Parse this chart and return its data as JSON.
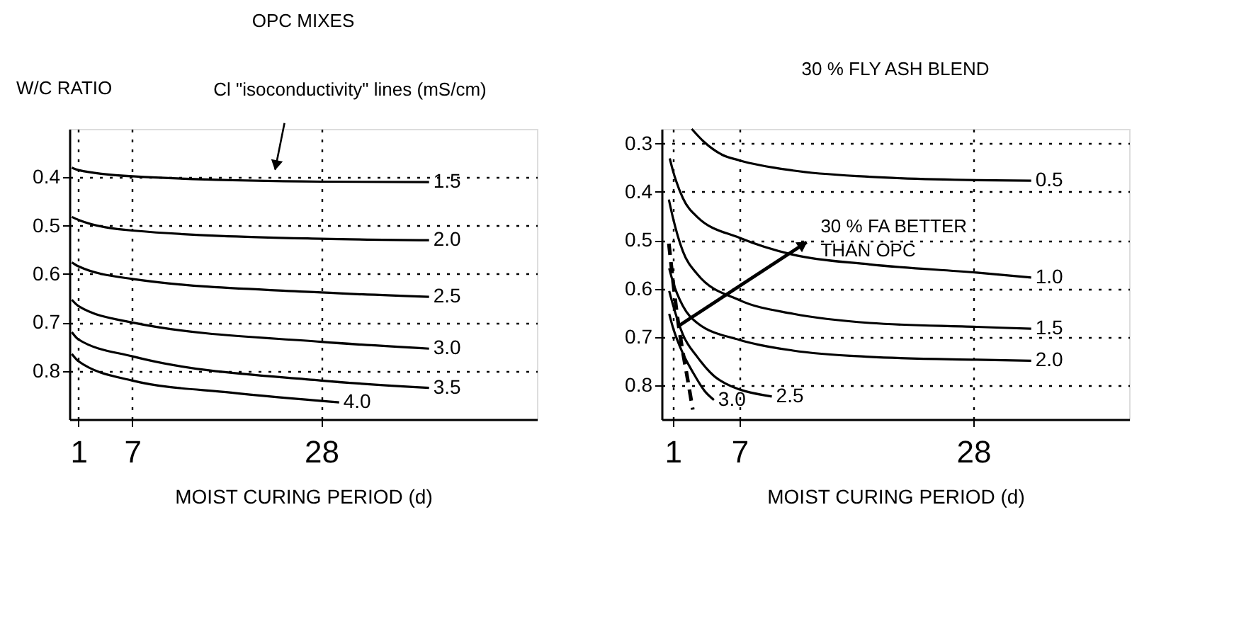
{
  "chart_data": [
    {
      "type": "line",
      "title": "OPC  MIXES",
      "ylabel": "W/C RATIO",
      "xlabel": "MOIST CURING PERIOD (d)",
      "xlim": [
        0,
        52
      ],
      "xticks": [
        1,
        7,
        28
      ],
      "ylim": [
        0.9,
        0.3
      ],
      "yticks": [
        0.4,
        0.5,
        0.6,
        0.7,
        0.8
      ],
      "grid": true,
      "marker": "none",
      "line_style": "solid",
      "annotations": [
        "Cl \"isoconductivity\" lines  (mS/cm)"
      ],
      "series": [
        {
          "name": "1.5",
          "color": "#000000",
          "x": [
            0.27,
            1,
            7,
            28,
            40
          ],
          "values": [
            0.38,
            0.385,
            0.398,
            0.409,
            0.41
          ]
        },
        {
          "name": "2.0",
          "color": "#000000",
          "x": [
            0.27,
            1,
            7,
            28,
            40
          ],
          "values": [
            0.482,
            0.488,
            0.51,
            0.527,
            0.53
          ]
        },
        {
          "name": "2.5",
          "color": "#000000",
          "x": [
            0.27,
            1,
            7,
            28,
            40
          ],
          "values": [
            0.576,
            0.584,
            0.61,
            0.638,
            0.647
          ]
        },
        {
          "name": "3.0",
          "color": "#000000",
          "x": [
            0.27,
            1,
            7,
            28,
            40
          ],
          "values": [
            0.653,
            0.666,
            0.7,
            0.74,
            0.754
          ]
        },
        {
          "name": "3.5",
          "color": "#000000",
          "x": [
            0.27,
            1,
            7,
            28,
            40
          ],
          "values": [
            0.72,
            0.735,
            0.77,
            0.82,
            0.835
          ]
        },
        {
          "name": "4.0",
          "color": "#000000",
          "x": [
            0.27,
            1,
            7,
            18,
            30
          ],
          "values": [
            0.765,
            0.78,
            0.82,
            0.845,
            0.865
          ]
        }
      ]
    },
    {
      "type": "line",
      "title": "30 % FLY ASH BLEND",
      "xlabel": "MOIST CURING PERIOD (d)",
      "xlim": [
        0,
        42
      ],
      "xticks": [
        1,
        7,
        28
      ],
      "ylim": [
        0.87,
        0.27
      ],
      "yticks": [
        0.3,
        0.4,
        0.5,
        0.6,
        0.7,
        0.8
      ],
      "grid": true,
      "marker": "none",
      "line_style": "solid",
      "annotations": [
        "30 % FA BETTER\nTHAN OPC"
      ],
      "series": [
        {
          "name": "0.5",
          "color": "#000000",
          "x": [
            2.7,
            3.77,
            5.4,
            7,
            11.8,
            18.7,
            28.3,
            33.2
          ],
          "values": [
            0.27,
            0.296,
            0.323,
            0.335,
            0.356,
            0.369,
            0.376,
            0.377
          ]
        },
        {
          "name": "1.0",
          "color": "#000000",
          "x": [
            0.73,
            1,
            1.91,
            3.2,
            7,
            11.8,
            18.7,
            28.3,
            33.2
          ],
          "values": [
            0.331,
            0.355,
            0.413,
            0.452,
            0.495,
            0.53,
            0.55,
            0.567,
            0.577
          ]
        },
        {
          "name": "1.5",
          "color": "#000000",
          "x": [
            0.65,
            1,
            1.91,
            3.2,
            7,
            11.8,
            18.7,
            28.3,
            33.2
          ],
          "values": [
            0.416,
            0.452,
            0.523,
            0.57,
            0.624,
            0.652,
            0.671,
            0.679,
            0.683
          ]
        },
        {
          "name": "2.0",
          "color": "#000000",
          "x": [
            0.68,
            1,
            1.91,
            3.2,
            7,
            11.8,
            18.7,
            28.3,
            33.2
          ],
          "values": [
            0.558,
            0.585,
            0.636,
            0.671,
            0.706,
            0.728,
            0.741,
            0.747,
            0.749
          ]
        },
        {
          "name": "2.5",
          "color": "#000000",
          "x": [
            0.68,
            1,
            1.91,
            3.2,
            5.13,
            9.9
          ],
          "values": [
            0.605,
            0.632,
            0.695,
            0.741,
            0.788,
            0.823
          ]
        },
        {
          "name": "3.0",
          "color": "#000000",
          "x": [
            0.68,
            1,
            1.91,
            2.81,
            3.88,
            4.7
          ],
          "values": [
            0.652,
            0.679,
            0.734,
            0.773,
            0.812,
            0.83
          ]
        },
        {
          "color": "#000000",
          "line_style": "dashed",
          "x": [
            0.65,
            1.38,
            2.43,
            2.8
          ],
          "values": [
            0.507,
            0.652,
            0.8,
            0.85
          ]
        }
      ]
    }
  ]
}
